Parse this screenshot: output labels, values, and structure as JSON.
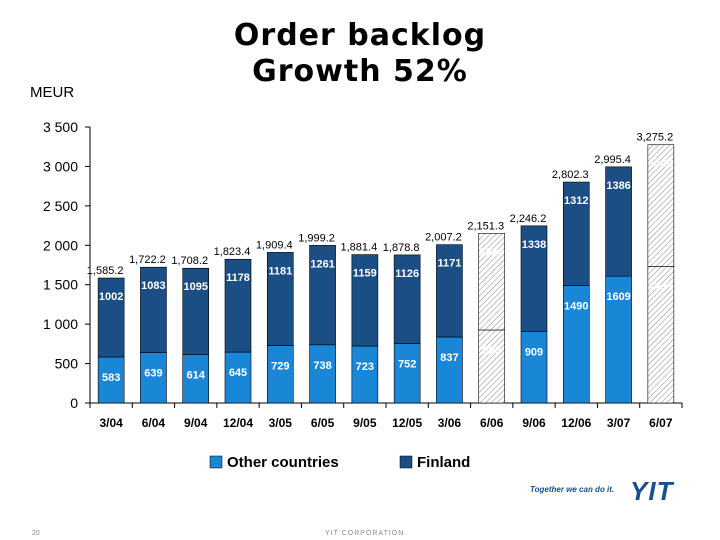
{
  "header": {
    "title_line1": "Order backlog",
    "title_line2": "Growth 52%",
    "unit": "MEUR"
  },
  "footer": {
    "page_number": "20",
    "corporation": "YIT CORPORATION",
    "slogan": "Together we can do it.",
    "logo_text": "YIT"
  },
  "colors": {
    "other_countries": "#1a86d6",
    "finland": "#1b4e84",
    "hatched_other": "#ffffff",
    "hatch_lines": "#888888"
  },
  "chart_data": {
    "type": "bar",
    "stacked": true,
    "categories": [
      "3/04",
      "6/04",
      "9/04",
      "12/04",
      "3/05",
      "6/05",
      "9/05",
      "12/05",
      "3/06",
      "6/06",
      "9/06",
      "12/06",
      "3/07",
      "6/07"
    ],
    "series": [
      {
        "name": "Other countries",
        "values": [
          583,
          639,
          614,
          645,
          729,
          738,
          723,
          752,
          837,
          926,
          909,
          1490,
          1609,
          1731
        ],
        "labels": [
          "583",
          "639",
          "614",
          "645",
          "729",
          "738",
          "723",
          "752",
          "837",
          "926",
          "909",
          "1490",
          "1609",
          "1731"
        ]
      },
      {
        "name": "Finland",
        "values": [
          1002,
          1083,
          1095,
          1178,
          1181,
          1261,
          1159,
          1126,
          1171,
          1226,
          1338,
          1312,
          1386,
          1544
        ],
        "labels": [
          "1002",
          "1083",
          "1095",
          "1178",
          "1181",
          "1261",
          "1159",
          "1126",
          "1171",
          "1226",
          "1338",
          "1312",
          "1386",
          "1544"
        ]
      }
    ],
    "hatched_categories": [
      "6/06",
      "6/07"
    ],
    "totals": [
      "1,585.2",
      "1,722.2",
      "1,708.2",
      "1,823.4",
      "1,909.4",
      "1,999.2",
      "1,881.4",
      "1,878.8",
      "2,007.2",
      "2,151.3",
      "2,246.2",
      "2,802.3",
      "2,995.4",
      "3,275.2"
    ],
    "total_values": [
      1585.2,
      1722.2,
      1708.2,
      1823.4,
      1909.4,
      1999.2,
      1881.4,
      1878.8,
      2007.2,
      2151.3,
      2246.2,
      2802.3,
      2995.4,
      3275.2
    ],
    "ylim": [
      0,
      3500
    ],
    "yticks": [
      0,
      500,
      1000,
      1500,
      2000,
      2500,
      3000,
      3500
    ],
    "ytick_labels": [
      "0",
      "500",
      "1 000",
      "1 500",
      "2 000",
      "2 500",
      "3 000",
      "3 500"
    ],
    "xlabel": "",
    "ylabel": "MEUR",
    "legend_position": "bottom",
    "grid": false
  }
}
